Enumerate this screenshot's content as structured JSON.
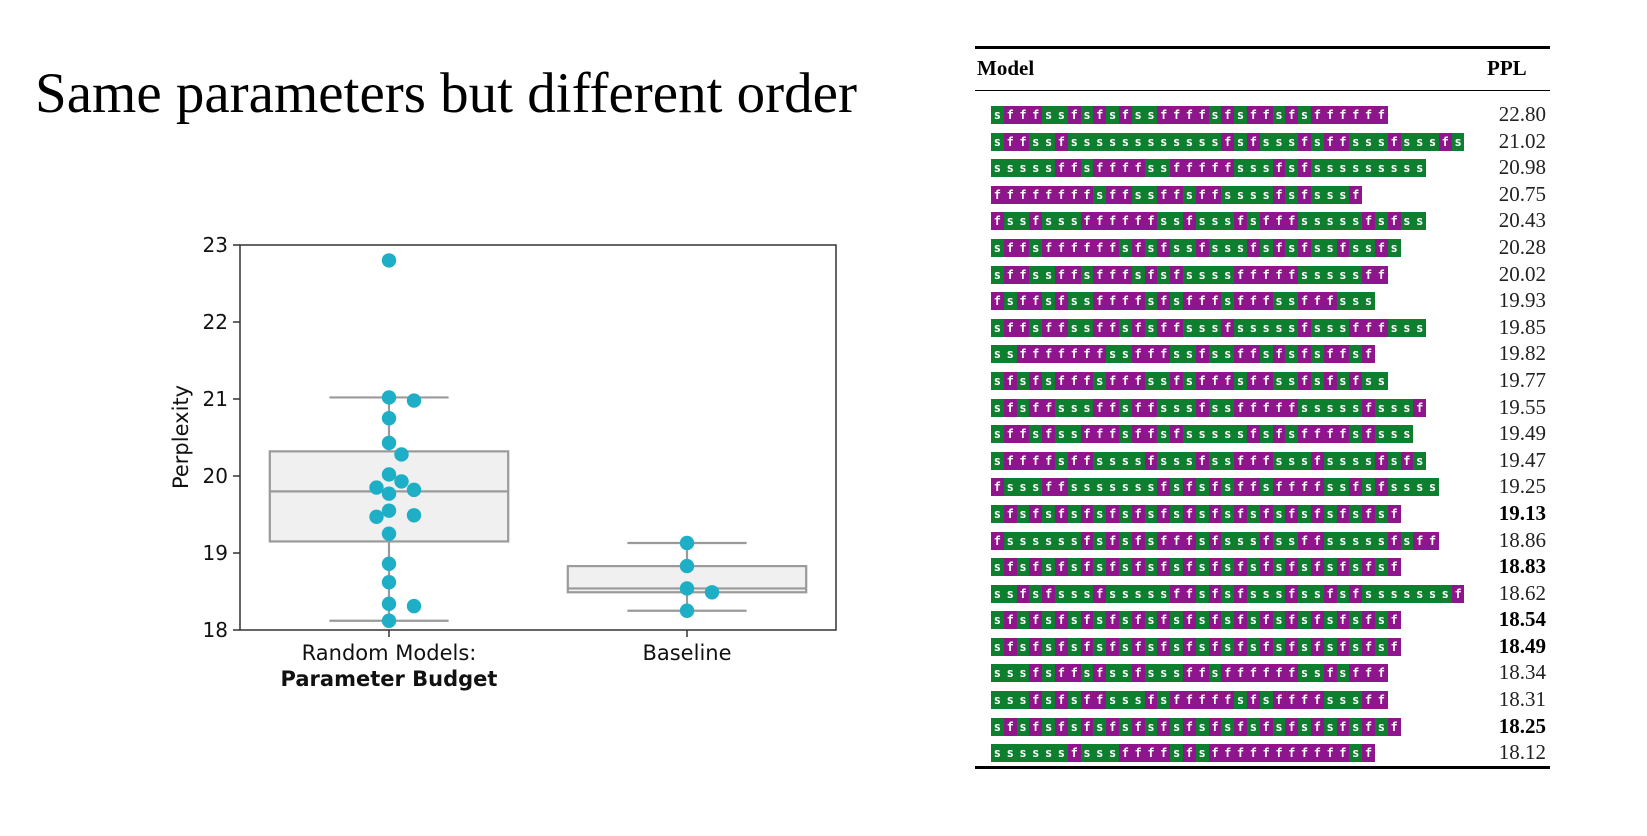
{
  "heading": "Same parameters but different order",
  "chart_data": {
    "type": "box",
    "ylabel": "Perplexity",
    "ylim": [
      18,
      23
    ],
    "yticks": [
      18,
      19,
      20,
      21,
      22,
      23
    ],
    "grid": false,
    "categories": [
      {
        "line1": "Random Models:",
        "line2": "Parameter Budget"
      },
      {
        "line1": "Baseline",
        "line2": ""
      }
    ],
    "boxes": [
      {
        "whisker_low": 18.12,
        "q1": 19.15,
        "median": 19.8,
        "q3": 20.32,
        "whisker_high": 21.02
      },
      {
        "whisker_low": 18.25,
        "q1": 18.49,
        "median": 18.54,
        "q3": 18.83,
        "whisker_high": 19.13
      }
    ],
    "points": [
      [
        22.8,
        21.02,
        20.98,
        20.75,
        20.43,
        20.28,
        20.02,
        19.93,
        19.85,
        19.82,
        19.77,
        19.55,
        19.49,
        19.47,
        19.25,
        18.86,
        18.62,
        18.34,
        18.31,
        18.12
      ],
      [
        19.13,
        18.83,
        18.54,
        18.49,
        18.25
      ]
    ],
    "box_face": "#f0f0f0",
    "box_edge": "#9a9a9a",
    "point_color": "#1eaec6"
  },
  "table": {
    "headers": {
      "model": "Model",
      "ppl": "PPL"
    },
    "colors": {
      "s": "#0e7f2e",
      "f": "#8f158c"
    },
    "rows": [
      {
        "seq": "sfffssfsfsfssffffsfsffsfsffffff",
        "ppl": "22.80",
        "bold": false
      },
      {
        "seq": "sffssfssssssssssssfsfsssfsffsssfsssfs",
        "ppl": "21.02",
        "bold": false
      },
      {
        "seq": "sssssffsffffssfffffsssfsfsssssssss",
        "ppl": "20.98",
        "bold": false
      },
      {
        "seq": "ffffffffsffssffsffssssfsfsssf",
        "ppl": "20.75",
        "bold": false
      },
      {
        "seq": "fssfsssffffffssfsssfsfffsssssfsfss",
        "ppl": "20.43",
        "bold": false
      },
      {
        "seq": "sffsffffffsfsfssfsssfsfsfssfssfs",
        "ppl": "20.28",
        "bold": false
      },
      {
        "seq": "sffssffsfffsfsfssssfffffsssssff",
        "ppl": "20.02",
        "bold": false
      },
      {
        "seq": "fsffsfssffffsfsfffsfffssfffsss",
        "ppl": "19.93",
        "bold": false
      },
      {
        "seq": "sffsffssffsfsffsssfsssssfsssfffsss",
        "ppl": "19.85",
        "bold": false
      },
      {
        "seq": "ssfffffffssfffssfssffsfsfsffsf",
        "ppl": "19.82",
        "bold": false
      },
      {
        "seq": "sfsfsfffsfffssfsfffsffssfsfsfss",
        "ppl": "19.77",
        "bold": false
      },
      {
        "seq": "sfsffsssffsffsssfssfffffsssssfsssf",
        "ppl": "19.55",
        "bold": false
      },
      {
        "seq": "sffsfssfffsffsfsssssfsfsffffsfsss",
        "ppl": "19.49",
        "bold": false
      },
      {
        "seq": "sffffsffssssfsssfssfffsssfssssfsfs",
        "ppl": "19.47",
        "bold": false
      },
      {
        "seq": "fsssffsssssssfsfsfsffsffffssfsfssss",
        "ppl": "19.25",
        "bold": false
      },
      {
        "seq": "sfsfsfsfsfsfsfsfsfsfsfsfsfsfsfsf",
        "ppl": "19.13",
        "bold": true
      },
      {
        "seq": "fssssssfsfsfsfffsfsssfssffsssssfsff",
        "ppl": "18.86",
        "bold": false
      },
      {
        "seq": "sfsfsfsfsfsfsfsfsfsfsfsfsfsfsfsf",
        "ppl": "18.83",
        "bold": true
      },
      {
        "seq": "ssfsfsssfsssssffsfsfsssfssfsfsssssssf",
        "ppl": "18.62",
        "bold": false
      },
      {
        "seq": "sfsfsfsfsfsfsfsfsfsfsfsfsfsfsfsf",
        "ppl": "18.54",
        "bold": true
      },
      {
        "seq": "sfsfsfsfsfsfsfsfsfsfsfsfsfsfsfsf",
        "ppl": "18.49",
        "bold": true
      },
      {
        "seq": "sssfsffsfssfsssffsffffffssfsfff",
        "ppl": "18.34",
        "bold": false
      },
      {
        "seq": "sssfsfsffsssfsfffffsfsffffsssff",
        "ppl": "18.31",
        "bold": false
      },
      {
        "seq": "sfsfsfsfsfsfsfsfsfsfsfsfsfsfsfsf",
        "ppl": "18.25",
        "bold": true
      },
      {
        "seq": "ssssssfsssffffsfsfffffffffffsf",
        "ppl": "18.12",
        "bold": false
      }
    ]
  }
}
